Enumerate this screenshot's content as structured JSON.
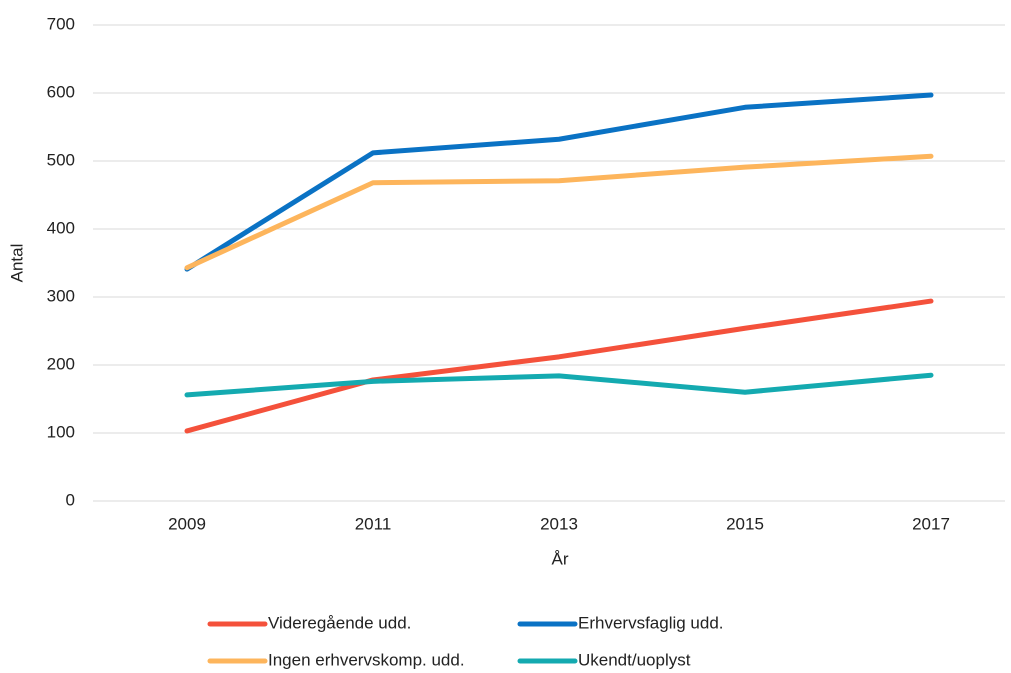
{
  "chart_data": {
    "type": "line",
    "xlabel": "År",
    "ylabel": "Antal",
    "categories": [
      "2009",
      "2011",
      "2013",
      "2015",
      "2017"
    ],
    "series": [
      {
        "name": "Videregående udd.",
        "color": "#f4513b",
        "values": [
          103,
          178,
          212,
          254,
          294
        ]
      },
      {
        "name": "Erhvervsfaglig udd.",
        "color": "#0a72c4",
        "values": [
          341,
          512,
          532,
          579,
          597
        ]
      },
      {
        "name": "Ingen erhvervskomp. udd.",
        "color": "#fdb55c",
        "values": [
          343,
          468,
          471,
          491,
          507
        ]
      },
      {
        "name": "Ukendt/uoplyst",
        "color": "#14aab0",
        "values": [
          156,
          176,
          184,
          160,
          185
        ]
      }
    ],
    "ylim": [
      0,
      700
    ],
    "yticks": [
      0,
      100,
      200,
      300,
      400,
      500,
      600,
      700
    ],
    "grid": true,
    "legend": "bottom"
  }
}
